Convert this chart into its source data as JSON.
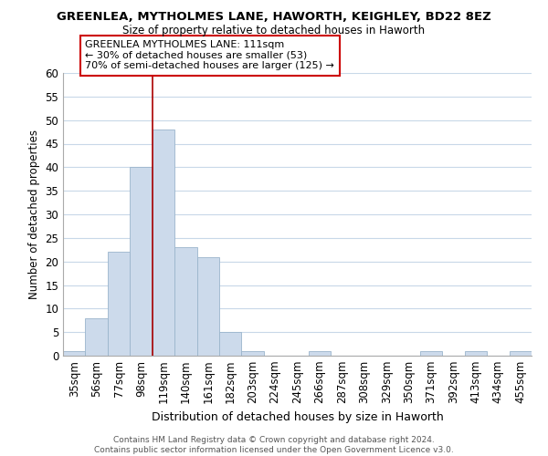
{
  "title": "GREENLEA, MYTHOLMES LANE, HAWORTH, KEIGHLEY, BD22 8EZ",
  "subtitle": "Size of property relative to detached houses in Haworth",
  "xlabel": "Distribution of detached houses by size in Haworth",
  "ylabel": "Number of detached properties",
  "footer_line1": "Contains HM Land Registry data © Crown copyright and database right 2024.",
  "footer_line2": "Contains public sector information licensed under the Open Government Licence v3.0.",
  "bin_labels": [
    "35sqm",
    "56sqm",
    "77sqm",
    "98sqm",
    "119sqm",
    "140sqm",
    "161sqm",
    "182sqm",
    "203sqm",
    "224sqm",
    "245sqm",
    "266sqm",
    "287sqm",
    "308sqm",
    "329sqm",
    "350sqm",
    "371sqm",
    "392sqm",
    "413sqm",
    "434sqm",
    "455sqm"
  ],
  "bar_heights": [
    1,
    8,
    22,
    40,
    48,
    23,
    21,
    5,
    1,
    0,
    0,
    1,
    0,
    0,
    0,
    0,
    1,
    0,
    1,
    0,
    1
  ],
  "bar_color": "#ccdaeb",
  "bar_edge_color": "#9ab5cc",
  "ylim": [
    0,
    60
  ],
  "yticks": [
    0,
    5,
    10,
    15,
    20,
    25,
    30,
    35,
    40,
    45,
    50,
    55,
    60
  ],
  "vline_x_index": 4,
  "vline_color": "#aa0000",
  "annotation_title": "GREENLEA MYTHOLMES LANE: 111sqm",
  "annotation_line1": "← 30% of detached houses are smaller (53)",
  "annotation_line2": "70% of semi-detached houses are larger (125) →",
  "annotation_box_color": "#ffffff",
  "annotation_box_edge": "#cc0000",
  "background_color": "#ffffff",
  "grid_color": "#c8d8e8"
}
